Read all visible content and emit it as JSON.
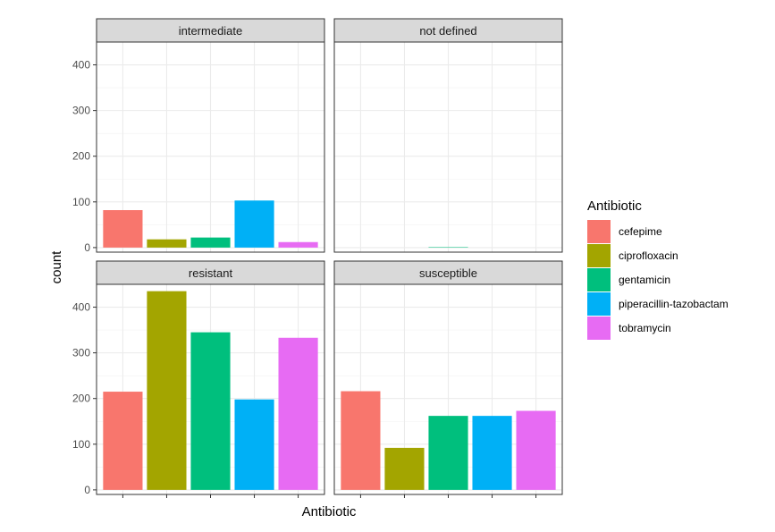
{
  "chart_data": {
    "type": "bar",
    "xlabel": "Antibiotic",
    "ylabel": "count",
    "ylim": [
      -10,
      450
    ],
    "yticks": [
      0,
      100,
      200,
      300,
      400
    ],
    "legend": {
      "title": "Antibiotic",
      "position": "right",
      "entries": [
        {
          "label": "cefepime",
          "color": "#F8766D"
        },
        {
          "label": "ciprofloxacin",
          "color": "#A3A500"
        },
        {
          "label": "gentamicin",
          "color": "#00BF7D"
        },
        {
          "label": "piperacillin-tazobactam",
          "color": "#00B0F6"
        },
        {
          "label": "tobramycin",
          "color": "#E76BF3"
        }
      ]
    },
    "categories": [
      "cefepime",
      "ciprofloxacin",
      "gentamicin",
      "piperacillin-tazobactam",
      "tobramycin"
    ],
    "panels": [
      {
        "title": "intermediate",
        "values": [
          82,
          18,
          22,
          103,
          12
        ]
      },
      {
        "title": "not defined",
        "values": [
          0,
          0,
          1,
          0,
          0
        ]
      },
      {
        "title": "resistant",
        "values": [
          215,
          435,
          345,
          198,
          333
        ]
      },
      {
        "title": "susceptible",
        "values": [
          216,
          92,
          162,
          162,
          173
        ]
      }
    ]
  }
}
